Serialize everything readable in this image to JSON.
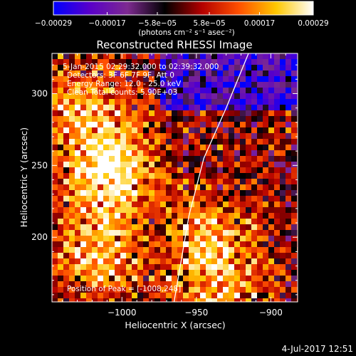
{
  "chart_data": {
    "type": "heatmap",
    "title": "Reconstructed RHESSI Image",
    "xlabel": "Heliocentric X (arcsec)",
    "ylabel": "Heliocentric Y (arcsec)",
    "xlim": [
      -1047,
      -882
    ],
    "ylim": [
      155,
      328
    ],
    "x_ticks": [
      -1000,
      -950,
      -900
    ],
    "x_tick_labels": [
      "−1000",
      "−950",
      "−900"
    ],
    "y_ticks": [
      200,
      250,
      300
    ],
    "y_tick_labels": [
      "200",
      "250",
      "300"
    ],
    "colorbar": {
      "range": [
        -0.00029,
        0.00029
      ],
      "tick_values": [
        -0.00029,
        -0.00017,
        -5.8e-05,
        5.8e-05,
        0.00017,
        0.00029
      ],
      "tick_labels": [
        "−0.00029",
        "−0.00017",
        "−5.8e−05",
        "5.8e−05",
        "0.00017",
        "0.00029"
      ],
      "unit_label": "(photons cm⁻² s⁻¹ asec⁻²)",
      "colormap": [
        "#0000ff",
        "#5a00c8",
        "#7d2a90",
        "#000000",
        "#b40000",
        "#ff5000",
        "#ffc800",
        "#ffffff"
      ]
    },
    "annotations": [
      "5-Jan-2015 02:29:32.000 to 02:39:32.000",
      "Detectors: 3F 6F 7F 9F, Att 0",
      "Energy Range: 12.0 - 25.0 keV",
      "Clean     Total counts: 5.90E+03"
    ],
    "peak_label": "Position of Peak = [-1008,248]",
    "peak": [
      -1008,
      248
    ],
    "bright_regions": [
      {
        "x": -1008,
        "y": 248,
        "relative_intensity": 1.0
      },
      {
        "x": -1030,
        "y": 290,
        "relative_intensity": 0.55
      },
      {
        "x": -1015,
        "y": 190,
        "relative_intensity": 0.7
      },
      {
        "x": -940,
        "y": 200,
        "relative_intensity": 0.6
      },
      {
        "x": -935,
        "y": 160,
        "relative_intensity": 0.5
      }
    ],
    "solar_limb": [
      [
        -965,
        155
      ],
      [
        -955,
        215
      ],
      [
        -945,
        255
      ],
      [
        -930,
        290
      ],
      [
        -915,
        328
      ]
    ],
    "grid": false
  },
  "footer": {
    "timestamp": "4-Jul-2017 12:51"
  }
}
